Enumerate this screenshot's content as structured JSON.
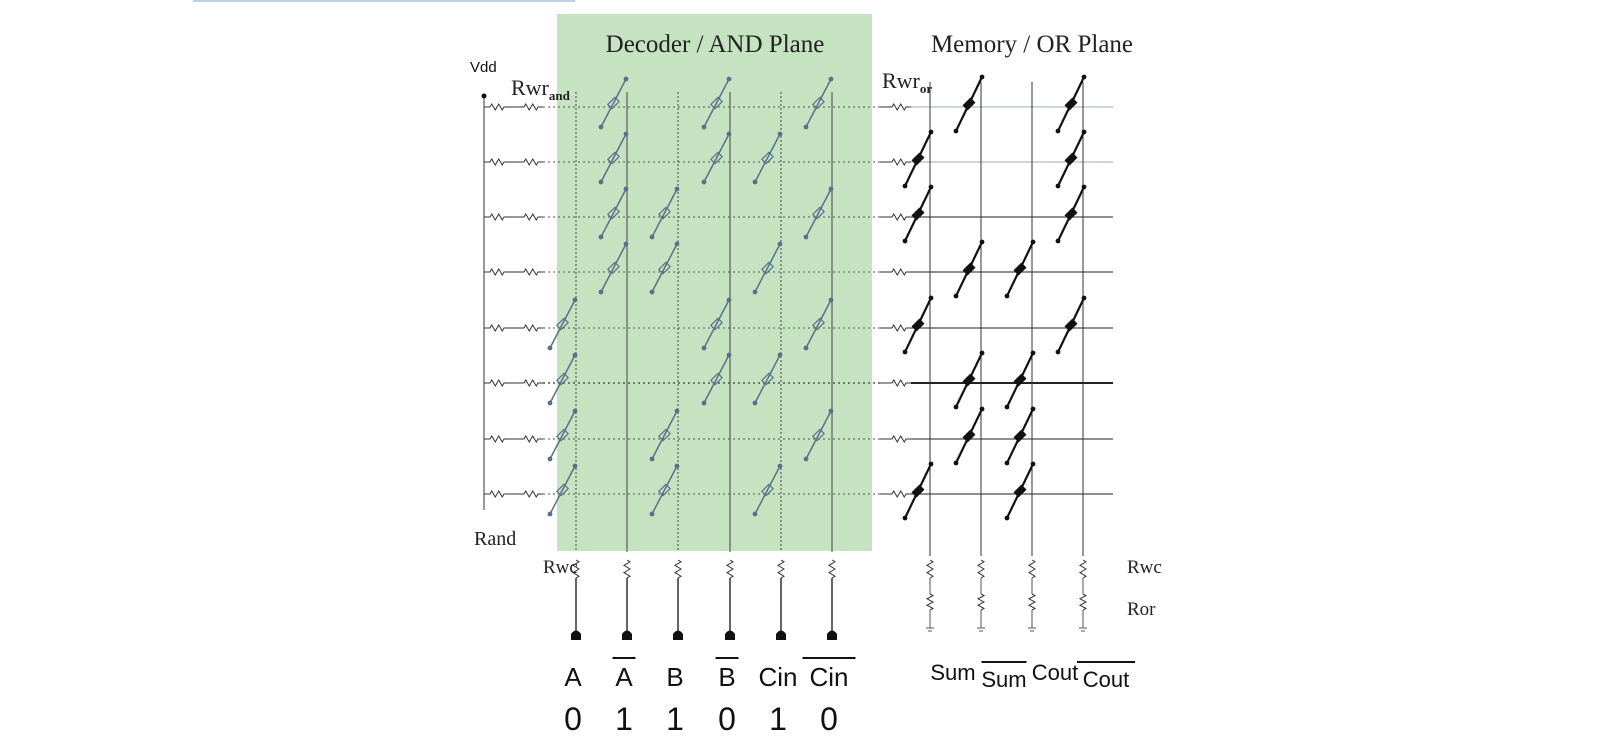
{
  "title_and": "Decoder / AND Plane",
  "title_or": "Memory / OR Plane",
  "labels": {
    "vdd": "Vdd",
    "rwr_and_main": "Rwr",
    "rwr_and_sub": "and",
    "rwr_or_main": "Rwr",
    "rwr_or_sub": "or",
    "rand": "Rand",
    "rwc_left": "Rwc",
    "rwc_right": "Rwc",
    "ror": "Ror"
  },
  "inputs": [
    {
      "label": "A",
      "bar": false,
      "value": "0"
    },
    {
      "label": "A",
      "bar": true,
      "value": "1"
    },
    {
      "label": "B",
      "bar": false,
      "value": "1"
    },
    {
      "label": "B",
      "bar": true,
      "value": "0"
    },
    {
      "label": "Cin",
      "bar": false,
      "value": "1"
    },
    {
      "label": "Cin",
      "bar": true,
      "value": "0"
    }
  ],
  "outputs": [
    {
      "label": "Sum",
      "bar": false
    },
    {
      "label": "Sum",
      "bar": true
    },
    {
      "label": "Cout",
      "bar": false
    },
    {
      "label": "Cout",
      "bar": true
    }
  ],
  "and_plane_devices": [
    [
      1,
      3,
      5
    ],
    [
      1,
      3,
      4
    ],
    [
      1,
      2,
      5
    ],
    [
      1,
      2,
      4
    ],
    [
      0,
      3,
      5
    ],
    [
      0,
      3,
      4
    ],
    [
      0,
      2,
      5
    ],
    [
      0,
      2,
      4
    ]
  ],
  "or_plane_devices": [
    [
      1,
      3
    ],
    [
      0,
      3
    ],
    [
      0,
      3
    ],
    [
      1,
      2
    ],
    [
      0,
      3
    ],
    [
      1,
      2
    ],
    [
      1,
      2
    ],
    [
      0,
      2
    ]
  ],
  "colors": {
    "and_plane_fill": "#c5e3c0",
    "and_device": "#5a6f8a",
    "or_device": "#111111",
    "wire": "#333333"
  }
}
